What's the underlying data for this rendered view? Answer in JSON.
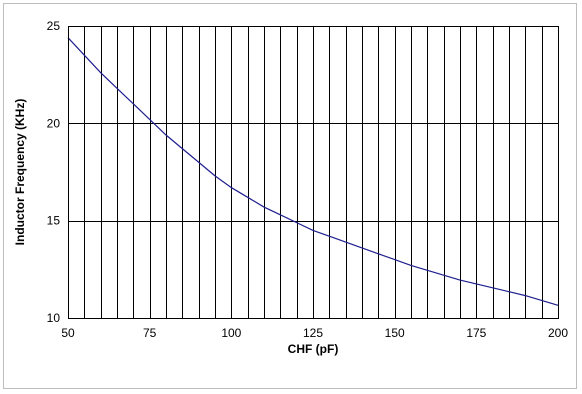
{
  "chart_data": {
    "type": "line",
    "title": "",
    "xlabel": "CHF (pF)",
    "ylabel": "Inductor Frequency (KHz)",
    "xlim": [
      50,
      200
    ],
    "ylim": [
      10,
      25
    ],
    "x_ticks": [
      50,
      75,
      100,
      125,
      150,
      175,
      200
    ],
    "y_ticks": [
      10,
      15,
      20,
      25
    ],
    "x_minor_step": 5,
    "grid": true,
    "legend": "none",
    "line_color": "#1f1f8f",
    "series": [
      {
        "x": [
          50,
          55,
          60,
          65,
          70,
          75,
          80,
          85,
          90,
          95,
          100,
          105,
          110,
          115,
          120,
          125,
          130,
          135,
          140,
          145,
          150,
          155,
          160,
          165,
          170,
          175,
          180,
          185,
          190,
          195,
          200
        ],
        "y": [
          24.4,
          23.5,
          22.6,
          21.8,
          21.0,
          20.2,
          19.4,
          18.7,
          18.0,
          17.3,
          16.7,
          16.2,
          15.7,
          15.3,
          14.9,
          14.5,
          14.2,
          13.9,
          13.6,
          13.3,
          13.0,
          12.7,
          12.45,
          12.2,
          11.95,
          11.75,
          11.55,
          11.35,
          11.15,
          10.9,
          10.65
        ]
      }
    ]
  }
}
